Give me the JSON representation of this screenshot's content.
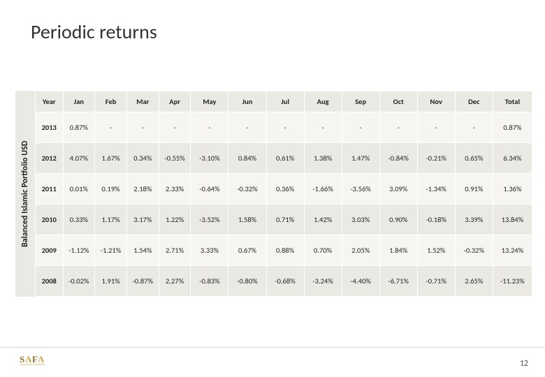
{
  "title": "Periodic returns",
  "side_label": "Balanced Islamic Portfolio USD",
  "page_number": "12",
  "table": {
    "columns": [
      "Year",
      "Jan",
      "Feb",
      "Mar",
      "Apr",
      "May",
      "Jun",
      "Jul",
      "Aug",
      "Sep",
      "Oct",
      "Nov",
      "Dec",
      "Total"
    ],
    "rows": [
      [
        "2013",
        "0.87%",
        "-",
        "-",
        "-",
        "-",
        "-",
        "-",
        "-",
        "-",
        "-",
        "-",
        "-",
        "0.87%"
      ],
      [
        "2012",
        "4.07%",
        "1.67%",
        "0.34%",
        "-0.55%",
        "-3.10%",
        "0.84%",
        "0.61%",
        "1.38%",
        "1.47%",
        "-0.84%",
        "-0.21%",
        "0.65%",
        "6.34%"
      ],
      [
        "2011",
        "0.01%",
        "0.19%",
        "2.18%",
        "2.33%",
        "-0.64%",
        "-0.32%",
        "0.36%",
        "-1.66%",
        "-3.56%",
        "3.09%",
        "-1.34%",
        "0.91%",
        "1.36%"
      ],
      [
        "2010",
        "0.33%",
        "1.17%",
        "3.17%",
        "1.22%",
        "-3.52%",
        "1.58%",
        "0.71%",
        "1.42%",
        "3.03%",
        "0.90%",
        "-0.18%",
        "3.39%",
        "13.84%"
      ],
      [
        "2009",
        "-1.12%",
        "-1.21%",
        "1.54%",
        "2.71%",
        "3.33%",
        "0.67%",
        "0.88%",
        "0.70%",
        "2.05%",
        "1.84%",
        "1.52%",
        "-0.32%",
        "13.24%"
      ],
      [
        "2008",
        "-0.02%",
        "1.91%",
        "-0.87%",
        "2.27%",
        "-0.83%",
        "-0.80%",
        "-0.68%",
        "-3.24%",
        "-4.40%",
        "-6.71%",
        "-0.71%",
        "2.65%",
        "-11.23%"
      ]
    ]
  },
  "styling": {
    "header_bg": "#ebe9e4",
    "row_bg_even": "#ebe9e4",
    "row_bg_odd": "#f6f5f2",
    "border_color": "#ffffff",
    "title_color": "#333333",
    "title_fontsize": 28,
    "cell_fontsize": 10.5,
    "side_label_bg": "#ebe9e4",
    "logo_colors": {
      "text": "#8c6f2e",
      "accent": "#c9a94a"
    }
  }
}
